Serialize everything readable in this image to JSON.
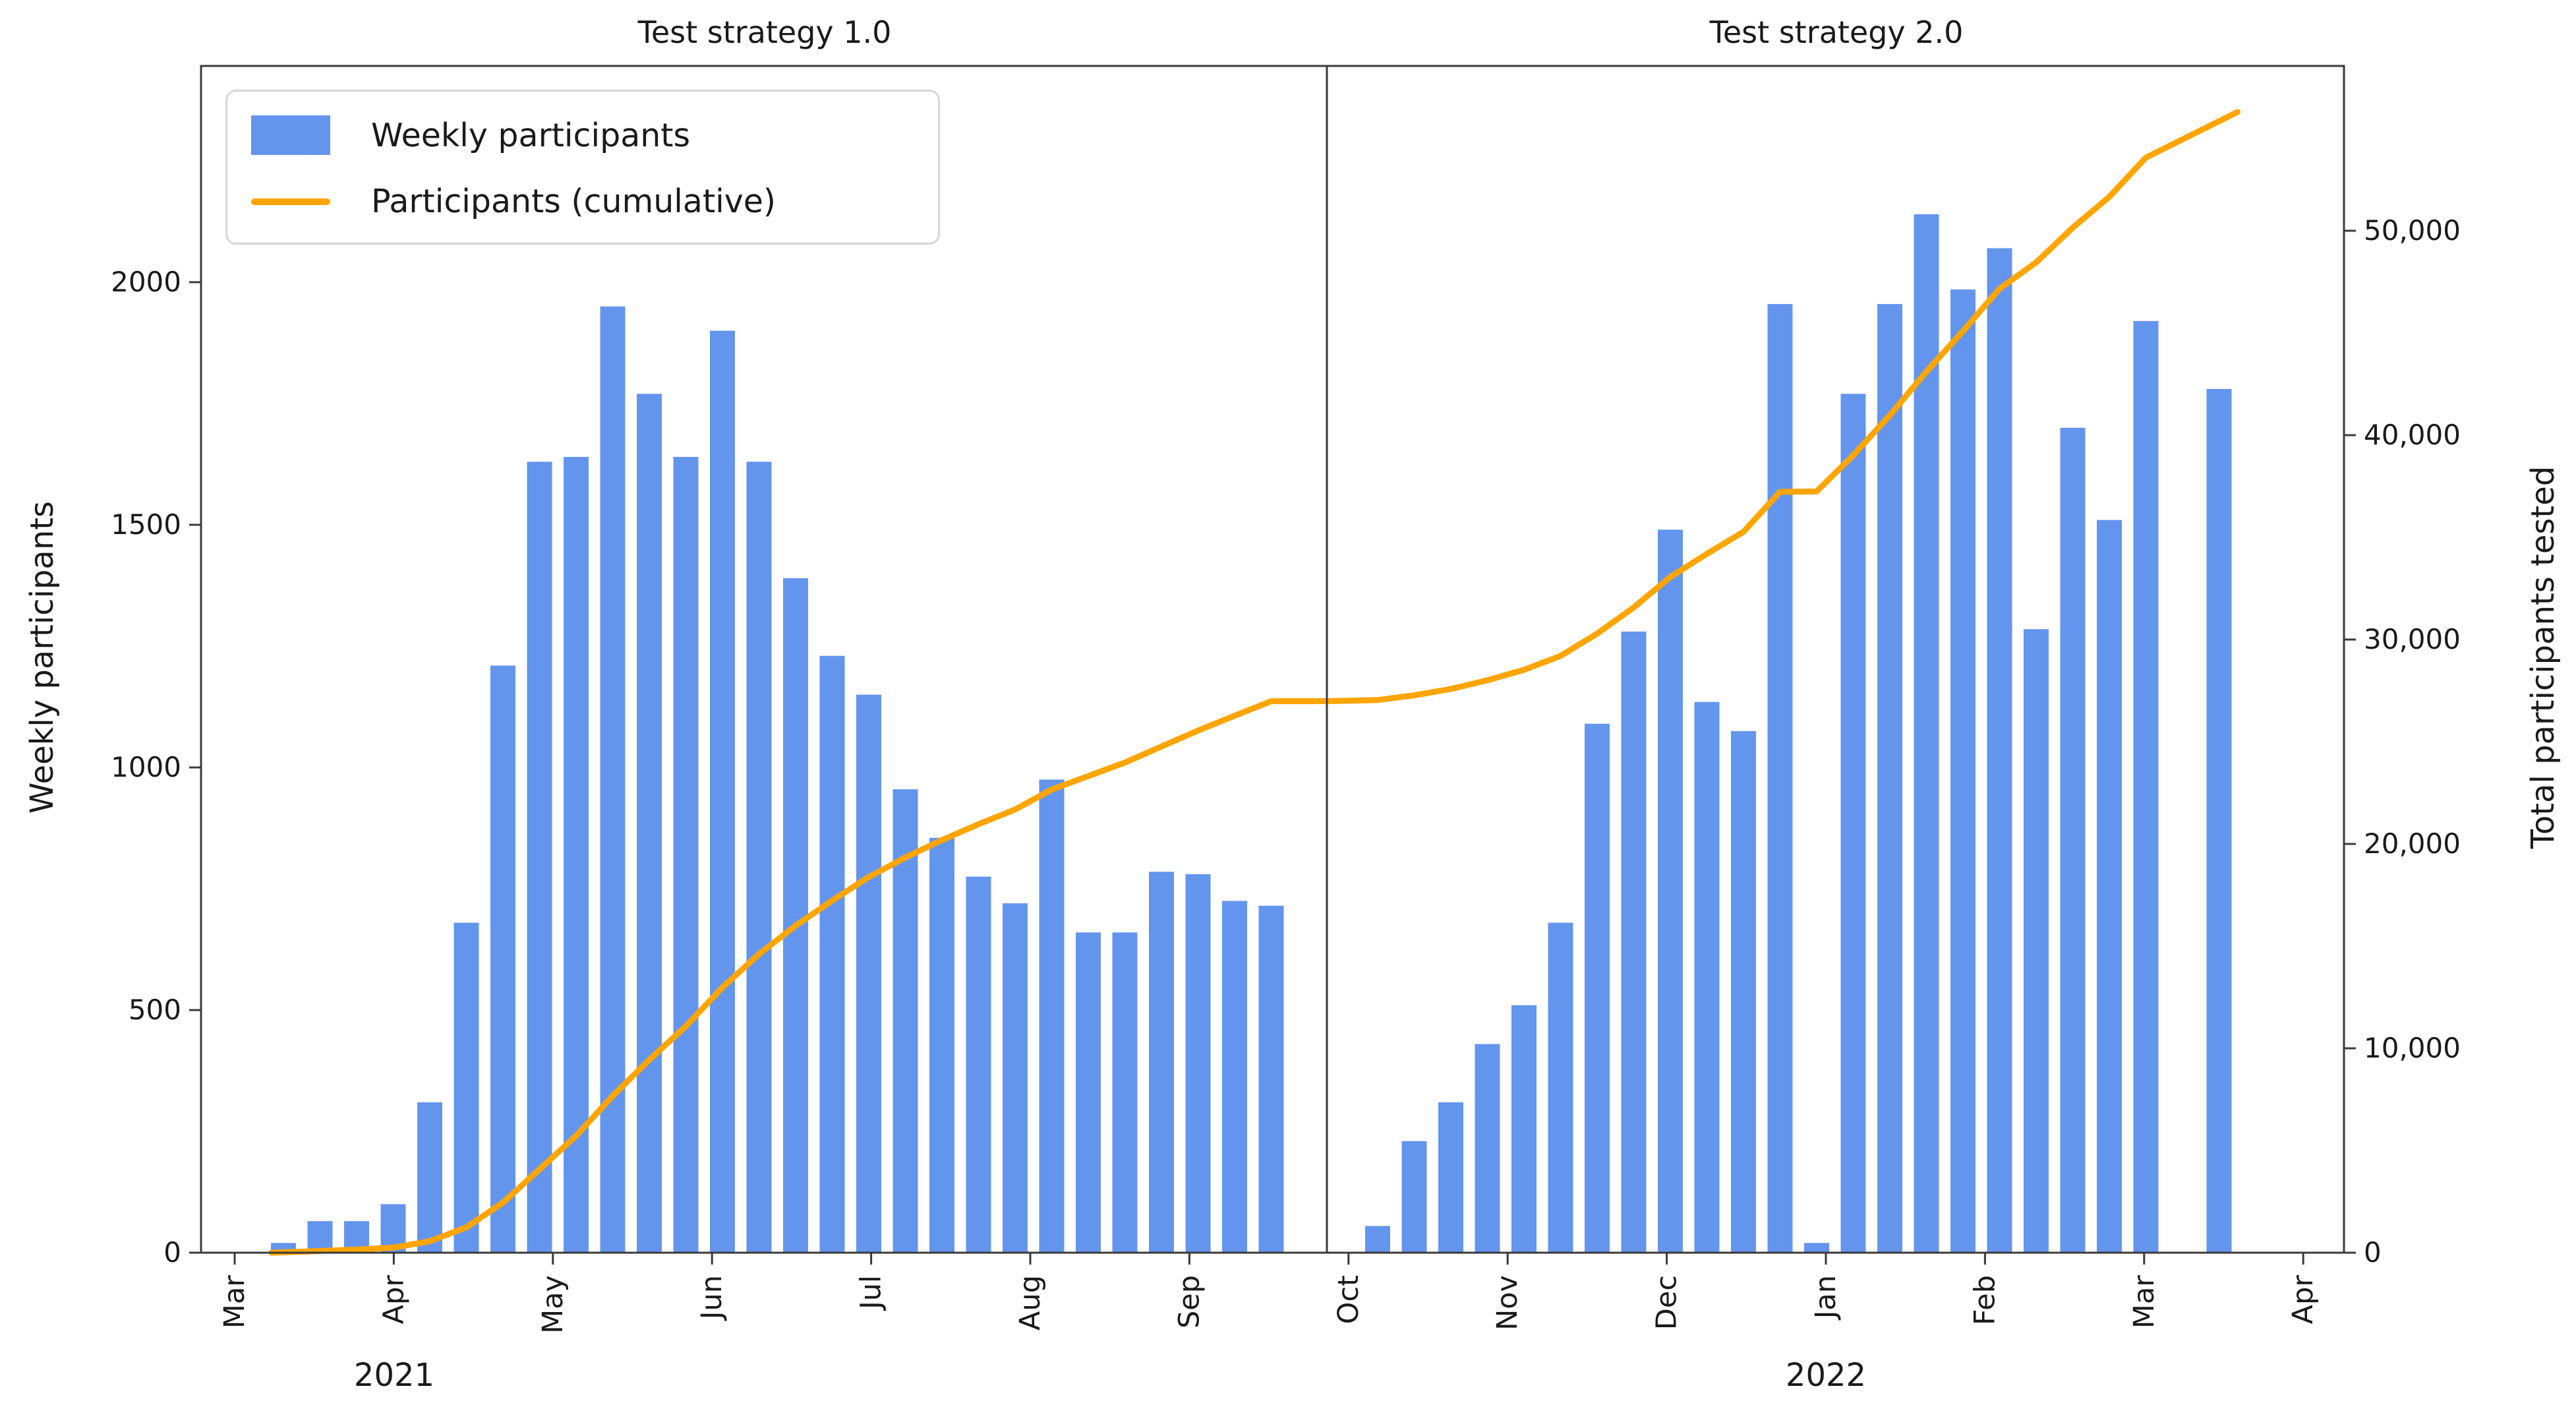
{
  "chart_data": {
    "type": "bar",
    "description": "Weekly COVID-test participants (bars, left axis) and cumulative participants tested (line, right axis), split into two test-strategy periods",
    "background_color": "#ffffff",
    "grid": false,
    "legend_position": "upper left",
    "legend": [
      {
        "label": "Weekly participants",
        "marker": "bar",
        "color": "#6495ED"
      },
      {
        "label": "Participants (cumulative)",
        "marker": "line",
        "color": "#FFA500"
      }
    ],
    "y_axis_left": {
      "label": "Weekly participants",
      "ticks": [
        0,
        500,
        1000,
        1500,
        2000
      ],
      "tick_labels": [
        "0",
        "500",
        "1000",
        "1500",
        "2000"
      ],
      "range": [
        0,
        2445
      ]
    },
    "y_axis_right": {
      "label": "Total participants tested",
      "ticks": [
        0,
        10000,
        20000,
        30000,
        40000,
        50000
      ],
      "tick_labels": [
        "0",
        "10,000",
        "20,000",
        "30,000",
        "40,000",
        "50,000"
      ],
      "range": [
        0,
        58060
      ]
    },
    "panels": [
      {
        "title": "Test strategy 1.0",
        "year_label": "2021",
        "month_ticks": [
          "Mar",
          "Apr",
          "May",
          "Jun",
          "Jul",
          "Aug",
          "Sep"
        ],
        "weekly_values": [
          20,
          65,
          65,
          100,
          310,
          680,
          1210,
          1630,
          1640,
          1950,
          1770,
          1640,
          1900,
          1630,
          1390,
          1230,
          1150,
          955,
          855,
          775,
          720,
          975,
          660,
          660,
          785,
          780,
          725,
          715
        ],
        "cumulative_start": 0,
        "cumulative_end": 26985
      },
      {
        "title": "Test strategy 2.0",
        "year_label": "2022",
        "month_ticks": [
          "Oct",
          "Nov",
          "Dec",
          "Jan",
          "Feb",
          "Mar",
          "Apr"
        ],
        "weekly_values": [
          55,
          230,
          310,
          430,
          510,
          680,
          1090,
          1280,
          1490,
          1135,
          1075,
          1955,
          20,
          1770,
          1955,
          2140,
          1985,
          2070,
          1285,
          1700,
          1510,
          1920,
          null,
          1780
        ],
        "cumulative_start": 26985,
        "cumulative_end": 55360
      }
    ],
    "colors": {
      "bar": "#6495ED",
      "line": "#FFA500",
      "spine": "#3a3a3a",
      "text": "#1a1a1a"
    }
  }
}
